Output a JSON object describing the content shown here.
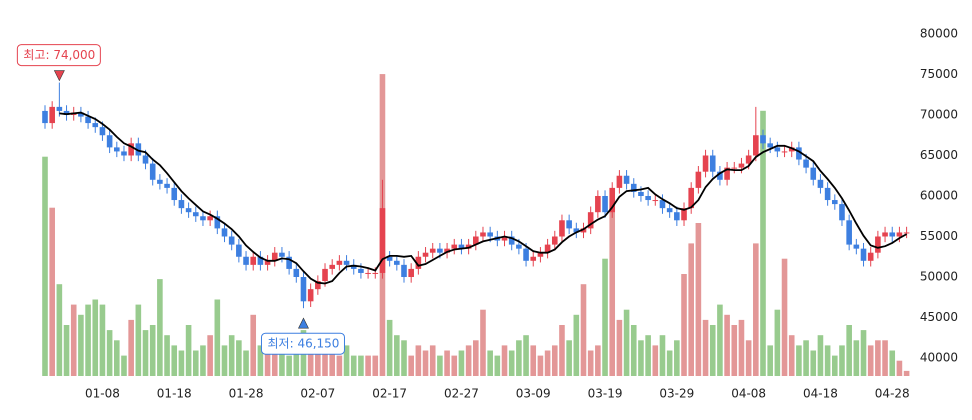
{
  "chart_data": {
    "type": "candlestick",
    "categories": [
      null,
      null,
      null,
      null,
      null,
      null,
      null,
      null,
      "01-08",
      null,
      null,
      null,
      null,
      null,
      null,
      null,
      null,
      null,
      "01-18",
      null,
      null,
      null,
      null,
      null,
      null,
      null,
      null,
      null,
      "01-28",
      null,
      null,
      null,
      null,
      null,
      null,
      null,
      null,
      null,
      "02-07",
      null,
      null,
      null,
      null,
      null,
      null,
      null,
      null,
      null,
      "02-17",
      null,
      null,
      null,
      null,
      null,
      null,
      null,
      null,
      null,
      "02-27",
      null,
      null,
      null,
      null,
      null,
      null,
      null,
      null,
      null,
      "03-09",
      null,
      null,
      null,
      null,
      null,
      null,
      null,
      null,
      null,
      "03-19",
      null,
      null,
      null,
      null,
      null,
      null,
      null,
      null,
      null,
      "03-29",
      null,
      null,
      null,
      null,
      null,
      null,
      null,
      null,
      null,
      "04-08",
      null,
      null,
      null,
      null,
      null,
      null,
      null,
      null,
      null,
      "04-18",
      null,
      null,
      null,
      null,
      null,
      null,
      null,
      null,
      null,
      "04-28",
      null,
      null
    ],
    "open": [
      70500,
      69000,
      71000,
      70500,
      70000,
      70300,
      69800,
      69000,
      68500,
      67500,
      66000,
      65500,
      65000,
      66500,
      65000,
      64000,
      62000,
      61500,
      61000,
      59500,
      58500,
      58000,
      57500,
      57000,
      57500,
      56000,
      55000,
      54000,
      52500,
      51500,
      52500,
      51500,
      52000,
      53000,
      52500,
      51000,
      50000,
      47000,
      48500,
      49500,
      51000,
      51500,
      52000,
      51500,
      51000,
      50500,
      50500,
      50500,
      52500,
      52000,
      51500,
      50000,
      51000,
      52500,
      53000,
      53500,
      53000,
      53500,
      54000,
      53500,
      54000,
      55000,
      55500,
      55000,
      54500,
      55000,
      54000,
      53500,
      52000,
      52500,
      53000,
      54000,
      55000,
      57000,
      56000,
      55500,
      56000,
      58000,
      60000,
      58000,
      61000,
      62500,
      61500,
      60500,
      60000,
      59500,
      59500,
      58500,
      58000,
      57000,
      58500,
      61000,
      63000,
      65000,
      63000,
      62000,
      63500,
      63500,
      64000,
      65000,
      67500,
      66500,
      66000,
      65500,
      65500,
      66000,
      64500,
      63500,
      62000,
      61000,
      59500,
      59000,
      57000,
      54000,
      53500,
      52000,
      53000,
      55000,
      55500,
      55000,
      55500
    ],
    "high": [
      71200,
      71700,
      74000,
      71200,
      71000,
      71000,
      70500,
      69700,
      69200,
      68200,
      66700,
      66200,
      67200,
      67200,
      65700,
      64700,
      62700,
      62200,
      61700,
      60200,
      59200,
      58700,
      58200,
      58200,
      58200,
      56700,
      55700,
      54700,
      53200,
      53200,
      53200,
      52700,
      53700,
      53700,
      53200,
      51700,
      50700,
      49200,
      50200,
      51700,
      52200,
      52700,
      52700,
      52200,
      51700,
      51200,
      51200,
      62000,
      53200,
      52700,
      52200,
      51700,
      53200,
      53700,
      54200,
      54200,
      54200,
      54700,
      54700,
      54700,
      55700,
      56200,
      56200,
      55700,
      55700,
      55700,
      54700,
      54200,
      53200,
      53700,
      54700,
      55700,
      57700,
      57700,
      56700,
      56700,
      58700,
      60700,
      60700,
      61700,
      63200,
      63200,
      62200,
      61200,
      60700,
      60200,
      60200,
      59200,
      58700,
      59200,
      61700,
      63700,
      65700,
      65700,
      63700,
      64200,
      64200,
      64700,
      65700,
      71000,
      68200,
      67200,
      66700,
      66200,
      66700,
      66700,
      65200,
      64200,
      62700,
      61700,
      60200,
      59700,
      57700,
      54700,
      54200,
      53700,
      55700,
      56200,
      56200,
      56200,
      56200
    ],
    "low": [
      68300,
      68300,
      69800,
      69300,
      69300,
      69100,
      68300,
      67800,
      66800,
      65300,
      64800,
      64300,
      64300,
      64300,
      63300,
      61300,
      60800,
      60300,
      58800,
      57800,
      57300,
      56800,
      56300,
      56300,
      55300,
      54300,
      53300,
      51800,
      50800,
      50800,
      50800,
      50800,
      51300,
      51800,
      50300,
      49300,
      46150,
      46300,
      47800,
      48800,
      50300,
      50800,
      50800,
      50300,
      49800,
      49800,
      49800,
      49800,
      51300,
      50800,
      49300,
      49300,
      50300,
      51800,
      52300,
      52300,
      52300,
      52800,
      52800,
      52800,
      53300,
      54300,
      54300,
      53800,
      53800,
      53300,
      52800,
      51300,
      51300,
      51800,
      52300,
      53300,
      54300,
      55300,
      54800,
      54800,
      55300,
      57300,
      57300,
      57300,
      60300,
      60800,
      59800,
      59300,
      58800,
      58800,
      57800,
      57300,
      56300,
      56300,
      57800,
      60300,
      62300,
      62300,
      61300,
      61300,
      62800,
      62800,
      63300,
      64300,
      65800,
      65300,
      64800,
      64800,
      64800,
      63800,
      62800,
      61300,
      60300,
      58800,
      58300,
      56300,
      53300,
      52800,
      51300,
      51300,
      52300,
      54300,
      54300,
      54300,
      54800
    ],
    "close": [
      69000,
      71000,
      70500,
      70000,
      70300,
      69800,
      69000,
      68500,
      67500,
      66000,
      65500,
      65000,
      66500,
      65000,
      64000,
      62000,
      61500,
      61000,
      59500,
      58500,
      58000,
      57500,
      57000,
      57500,
      56000,
      55000,
      54000,
      52500,
      51500,
      52500,
      51500,
      52000,
      53000,
      52500,
      51000,
      50000,
      47000,
      48500,
      49500,
      51000,
      51500,
      52000,
      51500,
      51000,
      50500,
      50500,
      50500,
      58500,
      52000,
      51500,
      50000,
      51000,
      52500,
      53000,
      53500,
      53000,
      53500,
      54000,
      53500,
      54000,
      55000,
      55500,
      55000,
      54500,
      55000,
      54000,
      53500,
      52000,
      52500,
      53000,
      54000,
      55000,
      57000,
      56000,
      55500,
      56000,
      58000,
      60000,
      58000,
      61000,
      62500,
      61500,
      60500,
      60000,
      59500,
      59500,
      58500,
      58000,
      57000,
      58500,
      61000,
      63000,
      65000,
      63000,
      62000,
      63500,
      63500,
      64000,
      65000,
      67500,
      66500,
      66000,
      65500,
      65500,
      66000,
      64500,
      63500,
      62000,
      61000,
      59500,
      59000,
      57000,
      54000,
      53500,
      52000,
      53000,
      55000,
      55500,
      55000,
      55500,
      55500
    ],
    "ma": [
      null,
      null,
      70200,
      70100,
      70200,
      70300,
      69900,
      69500,
      68900,
      68200,
      67300,
      66500,
      66100,
      65600,
      65400,
      64500,
      63800,
      62800,
      61700,
      60600,
      59700,
      58900,
      58100,
      57700,
      57200,
      56600,
      55900,
      55000,
      53900,
      53100,
      52400,
      52000,
      52000,
      52300,
      52200,
      51700,
      50700,
      49800,
      49300,
      49200,
      49500,
      50500,
      51300,
      51400,
      51300,
      51100,
      50800,
      52200,
      52600,
      52600,
      52500,
      52600,
      51400,
      51600,
      52100,
      52600,
      53100,
      53400,
      53500,
      53600,
      54000,
      54400,
      54600,
      54800,
      55000,
      54800,
      54400,
      53800,
      53200,
      53000,
      53000,
      53400,
      54300,
      55000,
      55500,
      55900,
      56500,
      57100,
      57500,
      58600,
      59900,
      60600,
      60700,
      60800,
      61000,
      60200,
      59600,
      59100,
      58500,
      58300,
      58600,
      59500,
      61100,
      62100,
      62800,
      63300,
      63200,
      63200,
      63700,
      64800,
      65400,
      65800,
      66200,
      66200,
      65900,
      65500,
      64900,
      64300,
      63100,
      62100,
      61000,
      59700,
      58200,
      56600,
      55100,
      53900,
      53600,
      53800,
      54200,
      54800,
      55300
    ],
    "volume": [
      2150,
      1650,
      900,
      500,
      700,
      600,
      700,
      750,
      700,
      450,
      350,
      200,
      550,
      700,
      450,
      500,
      950,
      400,
      300,
      250,
      500,
      250,
      300,
      400,
      750,
      300,
      400,
      350,
      250,
      600,
      300,
      300,
      250,
      250,
      200,
      300,
      450,
      350,
      250,
      300,
      350,
      200,
      300,
      200,
      200,
      200,
      200,
      2960,
      550,
      400,
      350,
      200,
      300,
      250,
      300,
      200,
      250,
      200,
      250,
      300,
      350,
      650,
      250,
      200,
      300,
      250,
      350,
      400,
      300,
      200,
      250,
      300,
      500,
      350,
      600,
      900,
      250,
      300,
      1150,
      1650,
      550,
      650,
      500,
      350,
      400,
      300,
      400,
      250,
      350,
      1000,
      1300,
      1500,
      550,
      500,
      700,
      600,
      500,
      550,
      350,
      1300,
      2600,
      300,
      650,
      1150,
      400,
      300,
      350,
      250,
      400,
      300,
      200,
      300,
      500,
      350,
      450,
      300,
      350,
      350,
      250,
      150,
      50
    ],
    "ylim": [
      37780,
      80490
    ],
    "yticks": [
      40000,
      45000,
      50000,
      55000,
      60000,
      65000,
      70000,
      75000,
      80000
    ],
    "vlim": [
      0,
      3000
    ],
    "up_color": "#e5434f",
    "down_color": "#3d7fe0",
    "volume_up_color": "#e39797",
    "volume_down_color": "#98cb8e",
    "ma_color": "#000000",
    "max_label": "최고: 74,000",
    "min_label": "최저: 46,150"
  }
}
